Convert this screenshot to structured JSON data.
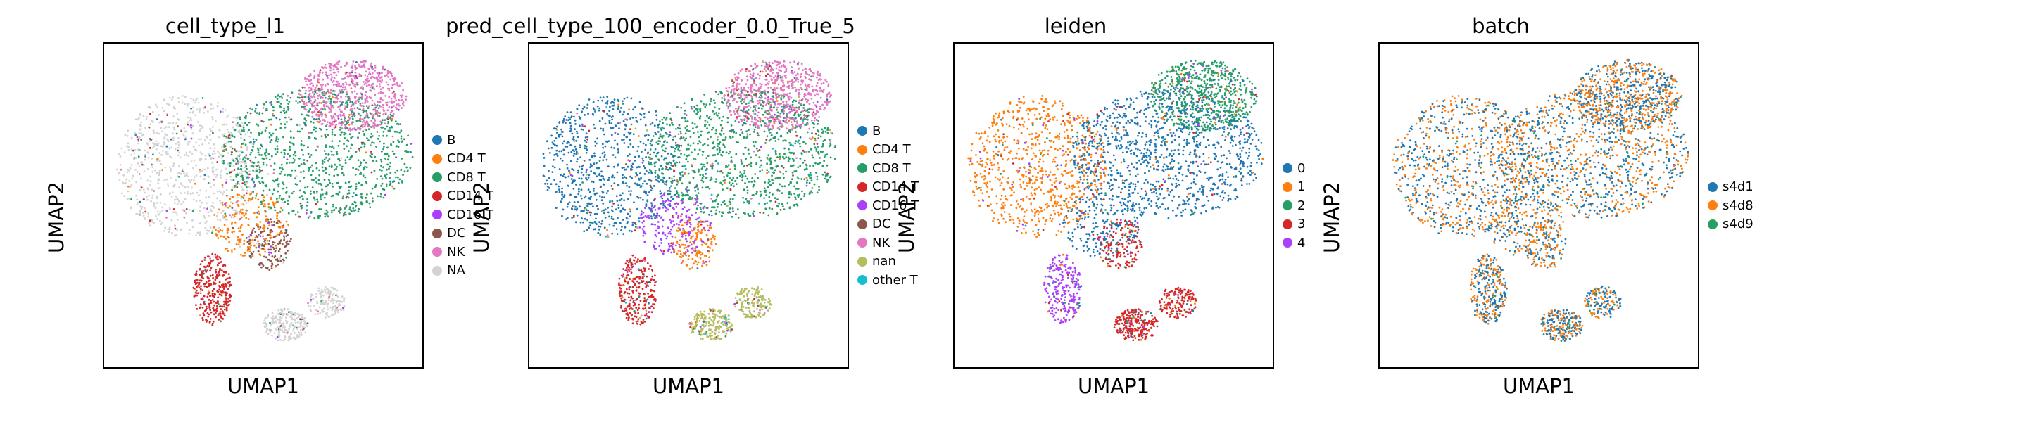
{
  "chart_data": [
    {
      "type": "scatter",
      "title": "cell_type_l1",
      "xlabel": "UMAP1",
      "ylabel": "UMAP2",
      "legend_position": "right",
      "series": [
        {
          "name": "B",
          "color": "#1f77b4"
        },
        {
          "name": "CD4 T",
          "color": "#ff7f0e"
        },
        {
          "name": "CD8 T",
          "color": "#279e68"
        },
        {
          "name": "CD14 T",
          "color": "#d62728"
        },
        {
          "name": "CD16 T",
          "color": "#aa40fc"
        },
        {
          "name": "DC",
          "color": "#8c564b"
        },
        {
          "name": "NK",
          "color": "#e377c2"
        },
        {
          "name": "NA",
          "color": "#d3d3d3"
        }
      ]
    },
    {
      "type": "scatter",
      "title": "pred_cell_type_100_encoder_0.0_True_5",
      "xlabel": "UMAP1",
      "ylabel": "UMAP2",
      "legend_position": "right",
      "series": [
        {
          "name": "B",
          "color": "#1f77b4"
        },
        {
          "name": "CD4 T",
          "color": "#ff7f0e"
        },
        {
          "name": "CD8 T",
          "color": "#279e68"
        },
        {
          "name": "CD14 T",
          "color": "#d62728"
        },
        {
          "name": "CD16 T",
          "color": "#aa40fc"
        },
        {
          "name": "DC",
          "color": "#8c564b"
        },
        {
          "name": "NK",
          "color": "#e377c2"
        },
        {
          "name": "nan",
          "color": "#b5bd61"
        },
        {
          "name": "other T",
          "color": "#17becf"
        }
      ]
    },
    {
      "type": "scatter",
      "title": "leiden",
      "xlabel": "UMAP1",
      "ylabel": "UMAP2",
      "legend_position": "right",
      "series": [
        {
          "name": "0",
          "color": "#1f77b4"
        },
        {
          "name": "1",
          "color": "#ff7f0e"
        },
        {
          "name": "2",
          "color": "#279e68"
        },
        {
          "name": "3",
          "color": "#d62728"
        },
        {
          "name": "4",
          "color": "#aa40fc"
        }
      ]
    },
    {
      "type": "scatter",
      "title": "batch",
      "xlabel": "UMAP1",
      "ylabel": "UMAP2",
      "legend_position": "right",
      "series": [
        {
          "name": "s4d1",
          "color": "#1f77b4"
        },
        {
          "name": "s4d8",
          "color": "#ff7f0e"
        },
        {
          "name": "s4d9",
          "color": "#279e68"
        }
      ]
    }
  ]
}
